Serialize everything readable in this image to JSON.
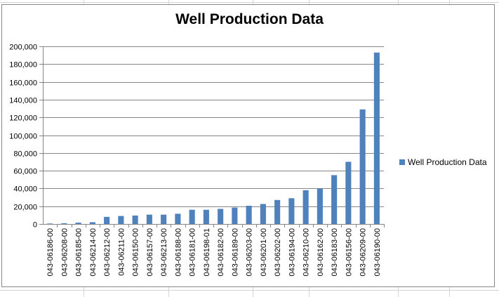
{
  "chart_data": {
    "type": "bar",
    "title": "Well Production Data",
    "xlabel": "",
    "ylabel": "",
    "ylim": [
      0,
      200000
    ],
    "yticks": [
      "0",
      "20,000",
      "40,000",
      "60,000",
      "80,000",
      "100,000",
      "120,000",
      "140,000",
      "160,000",
      "180,000",
      "200,000"
    ],
    "grid": true,
    "legend_position": "right",
    "bar_color": "#4F81BD",
    "categories": [
      "043-06186-00",
      "043-06208-00",
      "043-06185-00",
      "043-06214-00",
      "043-06212-00",
      "043-06211-00",
      "043-06150-00",
      "043-06157-00",
      "043-06213-00",
      "043-06188-00",
      "043-06181-00",
      "043-06198-01",
      "043-06182-00",
      "043-06189-00",
      "043-06203-00",
      "043-06201-00",
      "043-06202-00",
      "043-06194-00",
      "043-06210-00",
      "043-06162-00",
      "043-06183-00",
      "043-06156-00",
      "043-06209-00",
      "043-06190-00"
    ],
    "series": [
      {
        "name": "Well Production Data",
        "values": [
          500,
          800,
          1500,
          2000,
          8000,
          9000,
          9500,
          10500,
          10500,
          11500,
          16000,
          16000,
          17000,
          18500,
          20500,
          22500,
          27000,
          29000,
          38000,
          40000,
          55000,
          70000,
          129000,
          193000
        ]
      }
    ]
  }
}
